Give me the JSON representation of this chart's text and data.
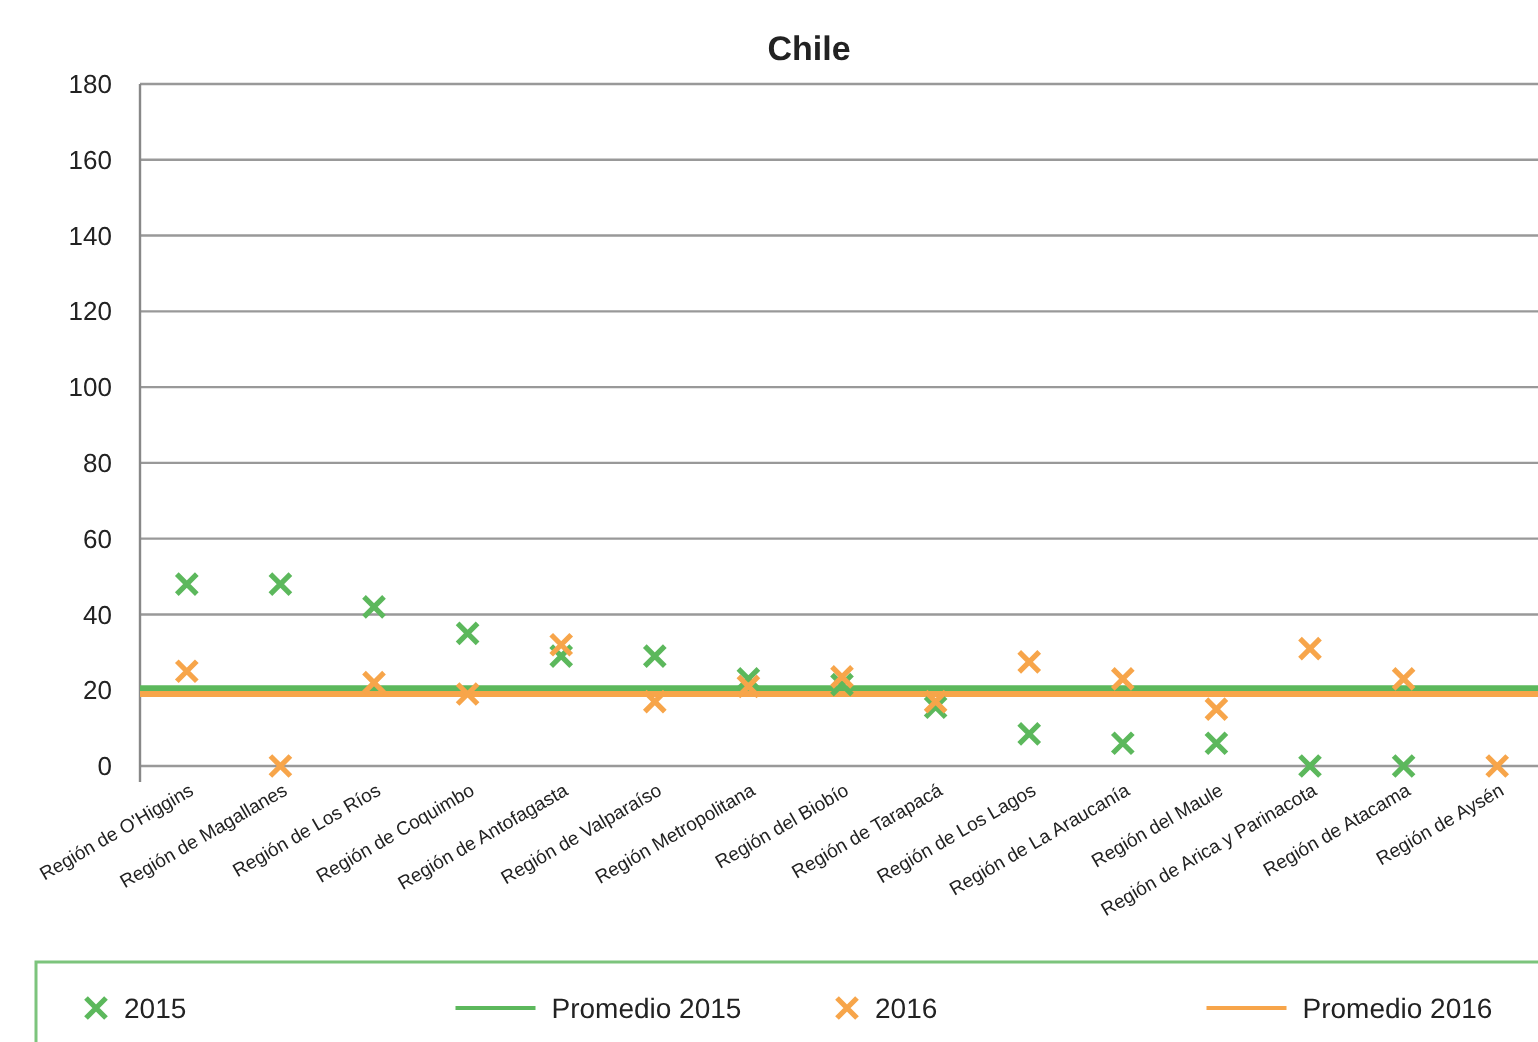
{
  "chart_data": {
    "type": "scatter",
    "title": "Chile",
    "categories": [
      "Región de O'Higgins",
      "Región de Magallanes",
      "Región de Los Ríos",
      "Región de Coquimbo",
      "Región de Antofagasta",
      "Región de Valparaíso",
      "Región Metropolitana",
      "Región del Biobío",
      "Región de Tarapacá",
      "Región de Los Lagos",
      "Región de La Araucanía",
      "Región del Maule",
      "Región de Arica y Parinacota",
      "Región de Atacama",
      "Región de Aysén"
    ],
    "series": [
      {
        "name": "2015",
        "color": "#5cb85c",
        "values": [
          48,
          48,
          42,
          35,
          29,
          29,
          23,
          21.5,
          15.5,
          8.5,
          6,
          6,
          0,
          0,
          null
        ]
      },
      {
        "name": "2016",
        "color": "#f7a54a",
        "values": [
          25,
          0,
          22,
          19,
          32,
          17,
          21,
          23.5,
          17,
          27.5,
          23,
          15,
          31,
          23,
          0
        ]
      }
    ],
    "ref_lines": [
      {
        "axis": "y",
        "value": 20.5,
        "label": "Promedio 2015",
        "color": "#5cb85c"
      },
      {
        "axis": "y",
        "value": 19,
        "label": "Promedio 2016",
        "color": "#f7a54a"
      }
    ],
    "ylim": [
      0,
      180
    ],
    "yticks": [
      0,
      20,
      40,
      60,
      80,
      100,
      120,
      140,
      160,
      180
    ],
    "grid": "y",
    "marker": "cross",
    "legend": "bottom"
  }
}
